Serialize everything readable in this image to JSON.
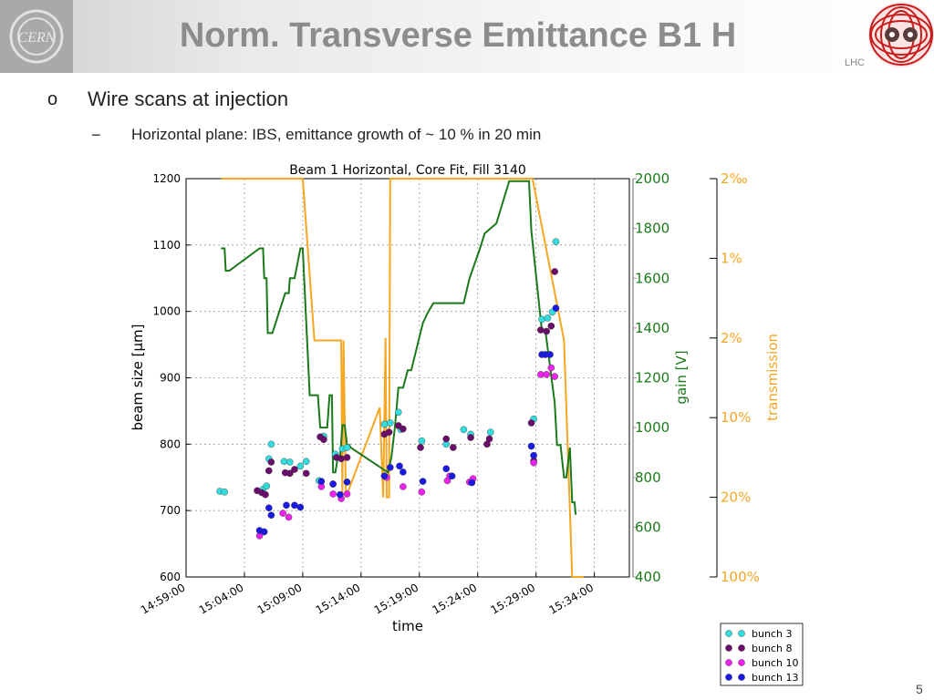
{
  "slide": {
    "title": "Norm. Transverse Emittance B1 H",
    "bullet_marker": "o",
    "bullet_text": "Wire scans at injection",
    "sub_marker": "−",
    "sub_text": "Horizontal plane: IBS, emittance growth of ~ 10 % in 20 min",
    "lhc_label": "LHC",
    "cern_label": "CERN",
    "page_number": "5"
  },
  "colors": {
    "gain": "#1a7a1a",
    "transmission": "#f5a623",
    "bunch3": "#33dddd",
    "bunch8": "#6a0d6a",
    "bunch10": "#ee22ee",
    "bunch13": "#1a1ae6"
  },
  "chart_data": {
    "type": "scatter",
    "title": "Beam 1 Horizontal, Core Fit, Fill 3140",
    "xlabel": "time",
    "ylabel": "beam size [μm]",
    "ylabel2": "gain [V]",
    "ylabel3": "transmission",
    "xlim": [
      0,
      38
    ],
    "x_tick_positions": [
      0,
      5,
      10,
      15,
      20,
      25,
      30,
      35
    ],
    "x_tick_labels": [
      "14:59:00",
      "15:04:00",
      "15:09:00",
      "15:14:00",
      "15:19:00",
      "15:24:00",
      "15:29:00",
      "15:34:00"
    ],
    "ylim": [
      600,
      1200
    ],
    "y_ticks": [
      600,
      700,
      800,
      900,
      1000,
      1100,
      1200
    ],
    "ylim2": [
      400,
      2000
    ],
    "y2_ticks": [
      400,
      600,
      800,
      1000,
      1200,
      1400,
      1600,
      1800,
      2000
    ],
    "y3_tick_labels": [
      "100%",
      "20%",
      "10%",
      "2%",
      "1%",
      "2‰"
    ],
    "grid": true,
    "legend_position": "below-right",
    "series": [
      {
        "name": "bunch 3",
        "color_key": "bunch3",
        "points": [
          [
            2.9,
            729
          ],
          [
            3.3,
            728
          ],
          [
            6.6,
            732
          ],
          [
            6.9,
            737
          ],
          [
            7.1,
            778
          ],
          [
            7.3,
            800
          ],
          [
            8.4,
            774
          ],
          [
            8.9,
            773
          ],
          [
            9.8,
            767
          ],
          [
            10.3,
            774
          ],
          [
            11.4,
            745
          ],
          [
            11.8,
            812
          ],
          [
            12.8,
            785
          ],
          [
            13.4,
            793
          ],
          [
            13.8,
            795
          ],
          [
            17.0,
            830
          ],
          [
            17.5,
            832
          ],
          [
            18.2,
            848
          ],
          [
            18.4,
            822
          ],
          [
            20.2,
            805
          ],
          [
            22.3,
            800
          ],
          [
            23.8,
            822
          ],
          [
            24.4,
            815
          ],
          [
            26.1,
            818
          ],
          [
            29.8,
            838
          ],
          [
            30.5,
            988
          ],
          [
            31.0,
            990
          ],
          [
            31.4,
            999
          ],
          [
            31.7,
            1105
          ]
        ]
      },
      {
        "name": "bunch 8",
        "color_key": "bunch8",
        "points": [
          [
            6.1,
            730
          ],
          [
            6.5,
            727
          ],
          [
            6.8,
            724
          ],
          [
            7.1,
            760
          ],
          [
            7.3,
            773
          ],
          [
            8.5,
            757
          ],
          [
            8.9,
            756
          ],
          [
            9.3,
            762
          ],
          [
            10.3,
            756
          ],
          [
            11.5,
            811
          ],
          [
            11.8,
            807
          ],
          [
            12.6,
            740
          ],
          [
            12.9,
            780
          ],
          [
            13.3,
            778
          ],
          [
            13.8,
            780
          ],
          [
            17.0,
            815
          ],
          [
            17.4,
            818
          ],
          [
            18.2,
            828
          ],
          [
            18.6,
            823
          ],
          [
            20.1,
            795
          ],
          [
            22.3,
            808
          ],
          [
            22.9,
            795
          ],
          [
            24.4,
            810
          ],
          [
            25.8,
            800
          ],
          [
            26.0,
            808
          ],
          [
            29.6,
            832
          ],
          [
            29.8,
            775
          ],
          [
            30.4,
            972
          ],
          [
            30.9,
            970
          ],
          [
            31.3,
            978
          ],
          [
            31.6,
            1060
          ]
        ]
      },
      {
        "name": "bunch 10",
        "color_key": "bunch10",
        "points": [
          [
            6.3,
            662
          ],
          [
            8.3,
            696
          ],
          [
            8.8,
            690
          ],
          [
            11.6,
            736
          ],
          [
            12.6,
            725
          ],
          [
            13.3,
            718
          ],
          [
            13.8,
            725
          ],
          [
            17.2,
            750
          ],
          [
            18.6,
            736
          ],
          [
            20.2,
            728
          ],
          [
            22.4,
            745
          ],
          [
            22.6,
            752
          ],
          [
            24.3,
            743
          ],
          [
            24.6,
            748
          ],
          [
            29.8,
            772
          ],
          [
            30.4,
            905
          ],
          [
            30.9,
            905
          ],
          [
            31.3,
            915
          ],
          [
            31.6,
            902
          ]
        ]
      },
      {
        "name": "bunch 13",
        "color_key": "bunch13",
        "points": [
          [
            6.3,
            670
          ],
          [
            6.7,
            668
          ],
          [
            7.1,
            704
          ],
          [
            7.3,
            693
          ],
          [
            8.6,
            708
          ],
          [
            9.3,
            708
          ],
          [
            9.8,
            705
          ],
          [
            11.6,
            744
          ],
          [
            12.6,
            740
          ],
          [
            13.2,
            724
          ],
          [
            13.8,
            743
          ],
          [
            17.0,
            752
          ],
          [
            17.5,
            765
          ],
          [
            18.3,
            767
          ],
          [
            18.6,
            758
          ],
          [
            20.3,
            744
          ],
          [
            22.3,
            763
          ],
          [
            22.8,
            752
          ],
          [
            24.5,
            742
          ],
          [
            29.6,
            797
          ],
          [
            29.8,
            783
          ],
          [
            30.5,
            935
          ],
          [
            30.8,
            935
          ],
          [
            31.2,
            935
          ],
          [
            31.7,
            1005
          ]
        ]
      },
      {
        "name": "gain",
        "color_key": "gain",
        "axis": "gain",
        "points": [
          [
            3.0,
            1720
          ],
          [
            3.3,
            1720
          ],
          [
            3.4,
            1630
          ],
          [
            3.7,
            1630
          ],
          [
            6.3,
            1720
          ],
          [
            6.6,
            1720
          ],
          [
            6.7,
            1600
          ],
          [
            6.9,
            1600
          ],
          [
            7.0,
            1380
          ],
          [
            7.1,
            1380
          ],
          [
            7.4,
            1380
          ],
          [
            8.5,
            1540
          ],
          [
            8.8,
            1540
          ],
          [
            8.9,
            1600
          ],
          [
            9.3,
            1600
          ],
          [
            9.8,
            1720
          ],
          [
            10.0,
            1720
          ],
          [
            10.6,
            1130
          ],
          [
            11.3,
            1130
          ],
          [
            11.5,
            1000
          ],
          [
            11.7,
            1000
          ],
          [
            12.1,
            1000
          ],
          [
            12.3,
            1130
          ],
          [
            12.5,
            1130
          ],
          [
            12.6,
            820
          ],
          [
            12.8,
            820
          ],
          [
            13.0,
            880
          ],
          [
            13.2,
            880
          ],
          [
            13.4,
            1010
          ],
          [
            13.6,
            1010
          ],
          [
            13.8,
            930
          ],
          [
            14.0,
            930
          ],
          [
            14.1,
            920
          ],
          [
            17.3,
            820
          ],
          [
            17.6,
            880
          ],
          [
            17.9,
            1000
          ],
          [
            18.2,
            1160
          ],
          [
            18.6,
            1160
          ],
          [
            19.0,
            1230
          ],
          [
            19.3,
            1230
          ],
          [
            20.3,
            1420
          ],
          [
            20.7,
            1460
          ],
          [
            21.2,
            1500
          ],
          [
            23.8,
            1500
          ],
          [
            24.3,
            1600
          ],
          [
            25.2,
            1720
          ],
          [
            25.6,
            1780
          ],
          [
            26.6,
            1820
          ],
          [
            27.7,
            1990
          ],
          [
            29.4,
            1990
          ],
          [
            29.6,
            1790
          ],
          [
            30.5,
            1390
          ],
          [
            30.8,
            1390
          ],
          [
            31.6,
            1100
          ],
          [
            31.8,
            930
          ],
          [
            32.1,
            930
          ],
          [
            32.4,
            800
          ],
          [
            32.6,
            800
          ],
          [
            32.9,
            920
          ],
          [
            33.1,
            700
          ],
          [
            33.3,
            700
          ],
          [
            33.4,
            650
          ]
        ]
      },
      {
        "name": "transmission",
        "color_key": "transmission",
        "axis": "gain",
        "points": [
          [
            3.0,
            2000
          ],
          [
            10.0,
            2000
          ],
          [
            11.0,
            1350
          ],
          [
            13.3,
            1350
          ],
          [
            13.4,
            720
          ],
          [
            13.5,
            1350
          ],
          [
            13.7,
            720
          ],
          [
            16.6,
            1080
          ],
          [
            16.9,
            720
          ],
          [
            17.1,
            1360
          ],
          [
            17.2,
            720
          ],
          [
            17.4,
            720
          ],
          [
            17.5,
            2000
          ],
          [
            18.0,
            2000
          ],
          [
            18.4,
            2000
          ],
          [
            29.5,
            2000
          ],
          [
            29.7,
            2000
          ],
          [
            32.4,
            1350
          ],
          [
            33.1,
            400
          ],
          [
            34.1,
            400
          ]
        ]
      }
    ]
  }
}
